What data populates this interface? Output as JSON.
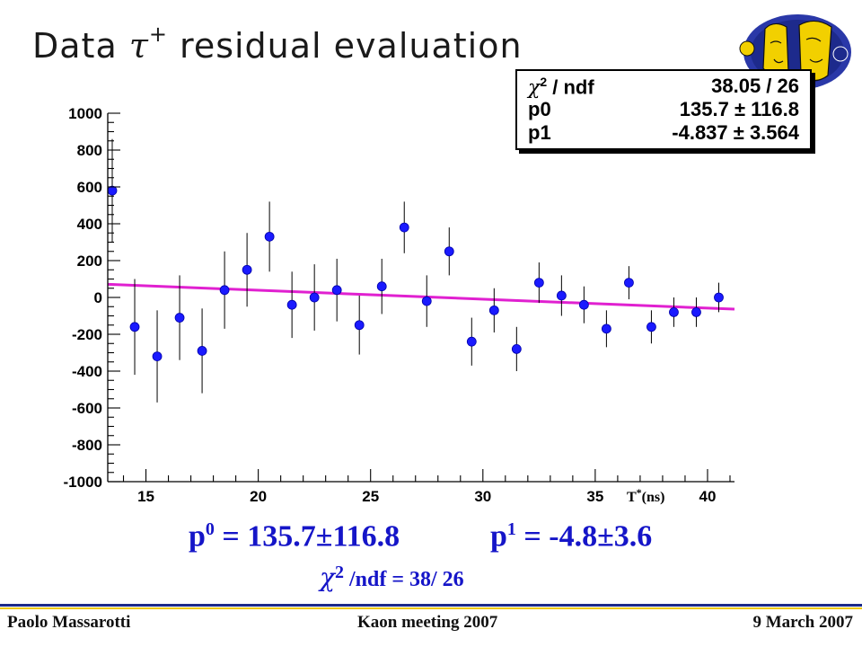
{
  "slide": {
    "title_prefix": "Data ",
    "title_symbol": "τ",
    "title_superscript": "+",
    "title_suffix": " residual evaluation"
  },
  "stats": {
    "chi2_label": "/ ndf",
    "chi2_value": "38.05 / 26",
    "p0_label": "p0",
    "p0_value": "135.7 ± 116.8",
    "p1_label": "p1",
    "p1_value": "-4.837 ± 3.564"
  },
  "fit_text": {
    "p0_base": "p",
    "p0_sup": "0",
    "p0_value": " = 135.7±116.8",
    "p1_base": "p",
    "p1_sup": "1",
    "p1_value": " = -4.8±3.6",
    "chi_sup": "2",
    "chi_value": " /ndf = 38/ 26"
  },
  "footer": {
    "author": "Paolo Massarotti",
    "meeting": "Kaon  meeting 2007",
    "date": "9 March 2007"
  },
  "colors": {
    "marker": "#1a1aff",
    "fit_line": "#e020d0",
    "fit_text": "#1515c8",
    "footer_blue": "#1b2a8a",
    "footer_yellow": "#f0c800"
  },
  "chart_data": {
    "type": "scatter",
    "title": "",
    "xlabel": "T*(ns)",
    "ylabel": "",
    "xlim": [
      13.3,
      41.2
    ],
    "ylim": [
      -1000,
      1000
    ],
    "xticks": [
      15,
      20,
      25,
      30,
      35,
      40
    ],
    "yticks": [
      -1000,
      -800,
      -600,
      -400,
      -200,
      0,
      200,
      400,
      600,
      800,
      1000
    ],
    "grid": false,
    "points": {
      "x": [
        13.5,
        14.5,
        15.5,
        16.5,
        17.5,
        18.5,
        19.5,
        20.5,
        21.5,
        22.5,
        23.5,
        24.5,
        25.5,
        26.5,
        27.5,
        28.5,
        29.5,
        30.5,
        31.5,
        32.5,
        33.5,
        34.5,
        35.5,
        36.5,
        37.5,
        38.5,
        39.5,
        40.5
      ],
      "y": [
        580,
        -160,
        -320,
        -110,
        -290,
        40,
        150,
        330,
        -40,
        0,
        40,
        -150,
        60,
        380,
        -20,
        250,
        -240,
        -70,
        -280,
        80,
        10,
        -40,
        -170,
        80,
        -160,
        -80,
        -80,
        0
      ],
      "yerr": [
        280,
        260,
        250,
        230,
        230,
        210,
        200,
        190,
        180,
        180,
        170,
        160,
        150,
        140,
        140,
        130,
        130,
        120,
        120,
        110,
        110,
        100,
        100,
        90,
        90,
        80,
        80,
        80
      ]
    },
    "fit": {
      "type": "linear",
      "p0": 135.7,
      "p1": -4.837
    }
  }
}
